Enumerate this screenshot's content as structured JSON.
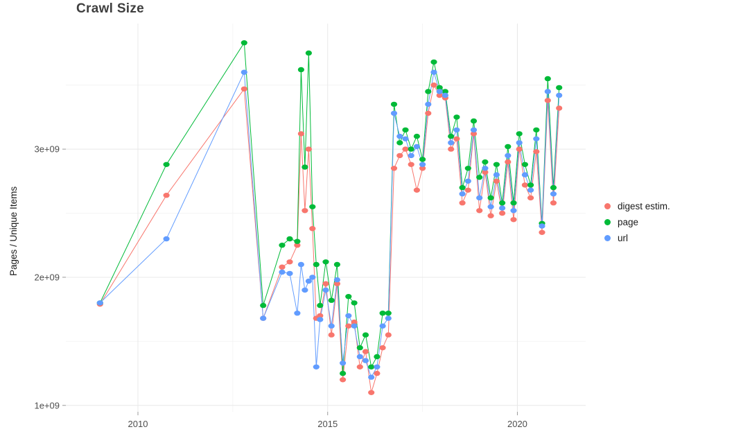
{
  "title": "Crawl Size",
  "ylabel": "Pages / Unique Items",
  "legend": {
    "items": [
      {
        "label": "digest estim.",
        "color": "#F8766D"
      },
      {
        "label": "page",
        "color": "#00BA38"
      },
      {
        "label": "url",
        "color": "#619CFF"
      }
    ]
  },
  "chart_data": {
    "type": "line",
    "marker": "point",
    "title": "Crawl Size",
    "xlabel": "",
    "ylabel": "Pages / Unique Items",
    "grid": true,
    "legend_position": "right",
    "xlim": [
      2008.1,
      2021.8
    ],
    "ylim": [
      950000000.0,
      3980000000.0
    ],
    "axes": {
      "y_ticks": [
        {
          "value": 1000000000.0,
          "label": "1e+09"
        },
        {
          "value": 2000000000.0,
          "label": "2e+09"
        },
        {
          "value": 3000000000.0,
          "label": "3e+09"
        }
      ],
      "y_minor": [
        1500000000.0,
        2500000000.0,
        3500000000.0
      ],
      "x_ticks": [
        {
          "value": 2010,
          "label": "2010"
        },
        {
          "value": 2015,
          "label": "2015"
        },
        {
          "value": 2020,
          "label": "2020"
        }
      ],
      "x_minor": [
        2012.5,
        2017.5
      ]
    },
    "x": [
      2009.0,
      2010.75,
      2012.8,
      2013.3,
      2013.8,
      2014.0,
      2014.2,
      2014.3,
      2014.4,
      2014.5,
      2014.6,
      2014.7,
      2014.8,
      2014.95,
      2015.1,
      2015.25,
      2015.4,
      2015.55,
      2015.7,
      2015.85,
      2016.0,
      2016.15,
      2016.3,
      2016.45,
      2016.6,
      2016.75,
      2016.9,
      2017.05,
      2017.2,
      2017.35,
      2017.5,
      2017.65,
      2017.8,
      2017.95,
      2018.1,
      2018.25,
      2018.4,
      2018.55,
      2018.7,
      2018.85,
      2019.0,
      2019.15,
      2019.3,
      2019.45,
      2019.6,
      2019.75,
      2019.9,
      2020.05,
      2020.2,
      2020.35,
      2020.5,
      2020.65,
      2020.8,
      2020.95,
      2021.1
    ],
    "series": [
      {
        "name": "digest estim.",
        "color": "#F8766D",
        "values": [
          1790000000.0,
          2640000000.0,
          3470000000.0,
          1680000000.0,
          2080000000.0,
          2120000000.0,
          2250000000.0,
          3120000000.0,
          2520000000.0,
          3000000000.0,
          2380000000.0,
          1680000000.0,
          1700000000.0,
          1950000000.0,
          1550000000.0,
          1950000000.0,
          1200000000.0,
          1620000000.0,
          1650000000.0,
          1300000000.0,
          1420000000.0,
          1100000000.0,
          1250000000.0,
          1450000000.0,
          1550000000.0,
          2850000000.0,
          2950000000.0,
          3000000000.0,
          2880000000.0,
          2680000000.0,
          2850000000.0,
          3280000000.0,
          3500000000.0,
          3420000000.0,
          3400000000.0,
          3000000000.0,
          3080000000.0,
          2580000000.0,
          2680000000.0,
          3120000000.0,
          2520000000.0,
          2820000000.0,
          2480000000.0,
          2750000000.0,
          2500000000.0,
          2900000000.0,
          2450000000.0,
          3000000000.0,
          2720000000.0,
          2620000000.0,
          2980000000.0,
          2350000000.0,
          3380000000.0,
          2580000000.0,
          3320000000.0
        ]
      },
      {
        "name": "page",
        "color": "#00BA38",
        "values": [
          1800000000.0,
          2880000000.0,
          3830000000.0,
          1780000000.0,
          2250000000.0,
          2300000000.0,
          2280000000.0,
          3620000000.0,
          2860000000.0,
          3750000000.0,
          2550000000.0,
          2100000000.0,
          1780000000.0,
          2120000000.0,
          1820000000.0,
          2100000000.0,
          1250000000.0,
          1850000000.0,
          1800000000.0,
          1450000000.0,
          1550000000.0,
          1300000000.0,
          1380000000.0,
          1720000000.0,
          1720000000.0,
          3350000000.0,
          3050000000.0,
          3150000000.0,
          3000000000.0,
          3100000000.0,
          2920000000.0,
          3450000000.0,
          3680000000.0,
          3480000000.0,
          3450000000.0,
          3100000000.0,
          3250000000.0,
          2700000000.0,
          2850000000.0,
          3220000000.0,
          2780000000.0,
          2900000000.0,
          2620000000.0,
          2880000000.0,
          2580000000.0,
          3020000000.0,
          2580000000.0,
          3120000000.0,
          2880000000.0,
          2720000000.0,
          3150000000.0,
          2420000000.0,
          3550000000.0,
          2700000000.0,
          3480000000.0
        ]
      },
      {
        "name": "url",
        "color": "#619CFF",
        "values": [
          1800000000.0,
          2300000000.0,
          3600000000.0,
          1680000000.0,
          2040000000.0,
          2030000000.0,
          1720000000.0,
          2100000000.0,
          1900000000.0,
          1970000000.0,
          2000000000.0,
          1300000000.0,
          1670000000.0,
          1900000000.0,
          1620000000.0,
          1980000000.0,
          1330000000.0,
          1700000000.0,
          1620000000.0,
          1380000000.0,
          1350000000.0,
          1220000000.0,
          1300000000.0,
          1620000000.0,
          1680000000.0,
          3280000000.0,
          3100000000.0,
          3080000000.0,
          2950000000.0,
          3020000000.0,
          2880000000.0,
          3350000000.0,
          3600000000.0,
          3450000000.0,
          3420000000.0,
          3050000000.0,
          3150000000.0,
          2650000000.0,
          2750000000.0,
          3150000000.0,
          2620000000.0,
          2850000000.0,
          2550000000.0,
          2800000000.0,
          2540000000.0,
          2950000000.0,
          2520000000.0,
          3050000000.0,
          2800000000.0,
          2680000000.0,
          3080000000.0,
          2400000000.0,
          3450000000.0,
          2650000000.0,
          3420000000.0
        ]
      }
    ]
  }
}
